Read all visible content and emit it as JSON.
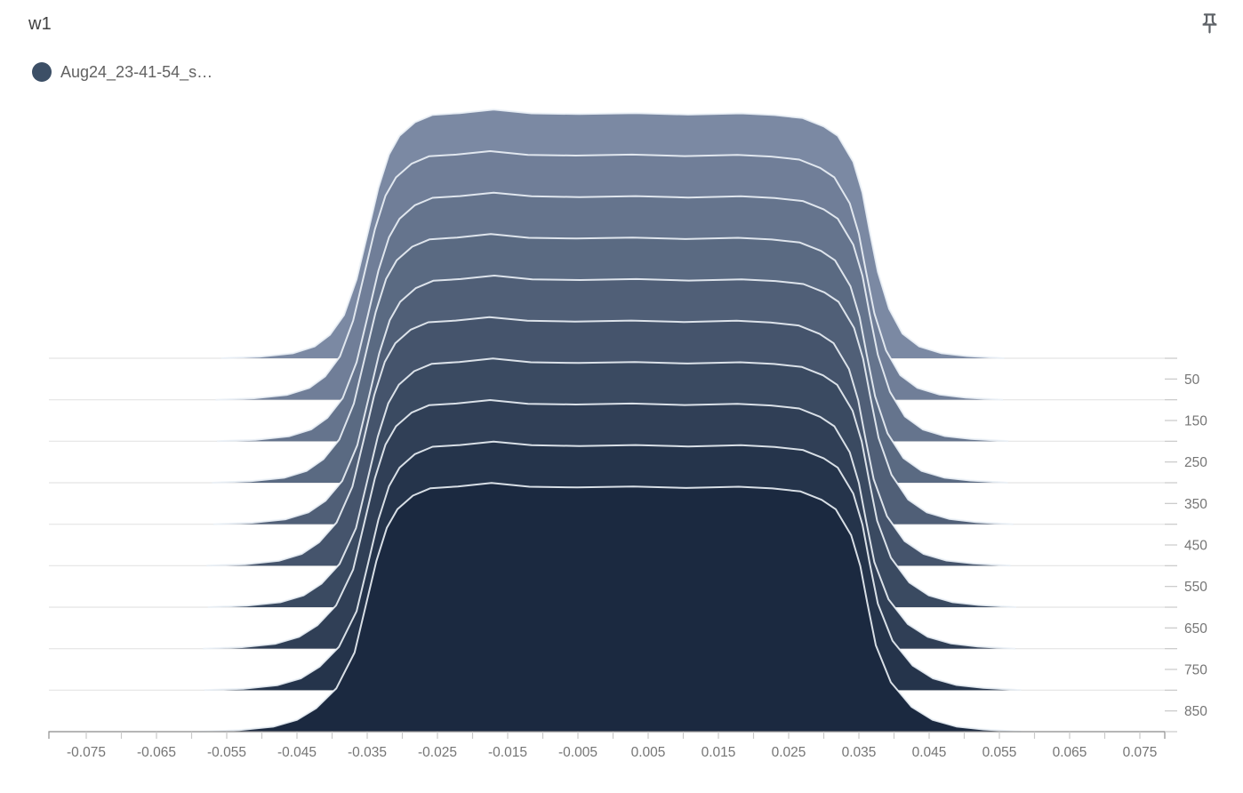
{
  "header": {
    "title": "w1"
  },
  "icons": {
    "pin": "push-pin-icon"
  },
  "legend": {
    "items": [
      {
        "label": "Aug24_23-41-54_s…",
        "color": "#3c4f66"
      }
    ]
  },
  "chart_data": {
    "type": "area",
    "variant": "histogram-offset-ridgeline",
    "title": "w1",
    "xlabel": "",
    "ylabel": "",
    "xlim": [
      -0.0803,
      0.0785
    ],
    "grid": true,
    "legend_position": "top-left",
    "x_axis": {
      "minor_tick_start": -0.075,
      "minor_tick_end": 0.075,
      "minor_tick_step": 0.005,
      "labels": [
        {
          "v": -0.075,
          "t": "-0.075"
        },
        {
          "v": -0.065,
          "t": "-0.065"
        },
        {
          "v": -0.055,
          "t": "-0.055"
        },
        {
          "v": -0.045,
          "t": "-0.045"
        },
        {
          "v": -0.035,
          "t": "-0.035"
        },
        {
          "v": -0.025,
          "t": "-0.025"
        },
        {
          "v": -0.015,
          "t": "-0.015"
        },
        {
          "v": -0.005,
          "t": "-0.005"
        },
        {
          "v": 0.005,
          "t": "0.005"
        },
        {
          "v": 0.015,
          "t": "0.015"
        },
        {
          "v": 0.025,
          "t": "0.025"
        },
        {
          "v": 0.035,
          "t": "0.035"
        },
        {
          "v": 0.045,
          "t": "0.045"
        },
        {
          "v": 0.055,
          "t": "0.055"
        },
        {
          "v": 0.065,
          "t": "0.065"
        },
        {
          "v": 0.075,
          "t": "0.075"
        }
      ]
    },
    "step_axis": {
      "lim": [
        0,
        900
      ],
      "grid_step": 100,
      "tick_step": 50,
      "labels": [
        {
          "v": 50,
          "t": "50"
        },
        {
          "v": 150,
          "t": "150"
        },
        {
          "v": 250,
          "t": "250"
        },
        {
          "v": 350,
          "t": "350"
        },
        {
          "v": 450,
          "t": "450"
        },
        {
          "v": 550,
          "t": "550"
        },
        {
          "v": 650,
          "t": "650"
        },
        {
          "v": 750,
          "t": "750"
        },
        {
          "v": 850,
          "t": "850"
        }
      ]
    },
    "colors": {
      "outline": "rgba(236,242,247,0.9)",
      "grid": "#e4e4e4",
      "axis_line": "#8f8f8f",
      "tick": "#c9c9c9",
      "tick_label": "#757575"
    },
    "profile": [
      [
        -0.056,
        0
      ],
      [
        -0.0505,
        0.006
      ],
      [
        -0.0458,
        0.02
      ],
      [
        -0.0427,
        0.048
      ],
      [
        -0.0405,
        0.095
      ],
      [
        -0.0385,
        0.175
      ],
      [
        -0.0367,
        0.32
      ],
      [
        -0.0351,
        0.51
      ],
      [
        -0.0336,
        0.69
      ],
      [
        -0.0321,
        0.825
      ],
      [
        -0.0306,
        0.9
      ],
      [
        -0.0284,
        0.955
      ],
      [
        -0.0259,
        0.985
      ],
      [
        -0.022,
        0.992
      ],
      [
        -0.0172,
        1.006
      ],
      [
        -0.0118,
        0.991
      ],
      [
        -0.005,
        0.988
      ],
      [
        0.003,
        0.992
      ],
      [
        0.0105,
        0.986
      ],
      [
        0.018,
        0.991
      ],
      [
        0.0228,
        0.984
      ],
      [
        0.0268,
        0.972
      ],
      [
        0.0298,
        0.938
      ],
      [
        0.0318,
        0.9
      ],
      [
        0.034,
        0.795
      ],
      [
        0.0353,
        0.67
      ],
      [
        0.0363,
        0.52
      ],
      [
        0.0375,
        0.35
      ],
      [
        0.0391,
        0.2
      ],
      [
        0.041,
        0.1
      ],
      [
        0.0434,
        0.048
      ],
      [
        0.0465,
        0.021
      ],
      [
        0.0502,
        0.009
      ],
      [
        0.0555,
        0
      ]
    ],
    "slices": [
      {
        "step": 0,
        "color": "#7b89a3",
        "dx": 0.0002,
        "spread": 0.0
      },
      {
        "step": 100,
        "color": "#707e98",
        "dx": -0.0003,
        "spread": 0.0003
      },
      {
        "step": 200,
        "color": "#65748d",
        "dx": 0.0002,
        "spread": 0.0006
      },
      {
        "step": 300,
        "color": "#5a6a82",
        "dx": -0.0002,
        "spread": 0.0009
      },
      {
        "step": 400,
        "color": "#505f77",
        "dx": 0.0003,
        "spread": 0.0012
      },
      {
        "step": 500,
        "color": "#45546c",
        "dx": -0.0004,
        "spread": 0.0015
      },
      {
        "step": 600,
        "color": "#3a4a61",
        "dx": 0.0001,
        "spread": 0.0018
      },
      {
        "step": 700,
        "color": "#303f56",
        "dx": -0.0003,
        "spread": 0.0021
      },
      {
        "step": 800,
        "color": "#25344b",
        "dx": 0.0002,
        "spread": 0.0024
      },
      {
        "step": 900,
        "color": "#1b2940",
        "dx": -0.0001,
        "spread": 0.0027
      }
    ]
  }
}
